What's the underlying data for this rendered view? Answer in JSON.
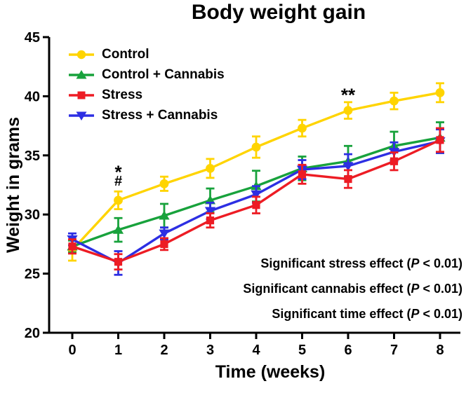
{
  "chart_data": {
    "type": "line",
    "title": "Body weight gain",
    "xlabel": "Time (weeks)",
    "ylabel": "Weight in grams",
    "x": [
      0,
      1,
      2,
      3,
      4,
      5,
      6,
      7,
      8
    ],
    "xlim": [
      -0.5,
      8.45
    ],
    "ylim": [
      20,
      45
    ],
    "yticks": [
      20,
      25,
      30,
      35,
      40,
      45
    ],
    "grid": false,
    "legend_position": "inside-top-left",
    "axis_color": "#000000",
    "series": [
      {
        "name": "Control",
        "color": "#FFD400",
        "marker": "circle",
        "values": [
          27.0,
          31.2,
          32.6,
          33.9,
          35.7,
          37.3,
          38.8,
          39.6,
          40.3
        ],
        "errors": [
          0.9,
          0.75,
          0.6,
          0.8,
          0.9,
          0.7,
          0.7,
          0.7,
          0.8
        ]
      },
      {
        "name": "Control + Cannabis",
        "color": "#18A23C",
        "marker": "triangle-up",
        "values": [
          27.3,
          28.7,
          29.9,
          31.2,
          32.4,
          33.9,
          34.5,
          35.8,
          36.5
        ],
        "errors": [
          0.5,
          1.0,
          1.0,
          1.0,
          1.3,
          1.0,
          1.3,
          1.2,
          1.3
        ]
      },
      {
        "name": "Stress",
        "color": "#ED1C24",
        "marker": "square",
        "values": [
          27.3,
          26.0,
          27.5,
          29.5,
          30.8,
          33.4,
          33.0,
          34.5,
          36.3
        ],
        "errors": [
          0.6,
          0.65,
          0.5,
          0.6,
          0.7,
          0.8,
          0.75,
          0.75,
          1.0
        ]
      },
      {
        "name": "Stress + Cannabis",
        "color": "#2D2FE3",
        "marker": "triangle-down",
        "values": [
          27.9,
          25.9,
          28.4,
          30.3,
          31.7,
          33.8,
          34.1,
          35.3,
          36.2
        ],
        "errors": [
          0.5,
          1.0,
          0.5,
          0.7,
          0.7,
          0.8,
          1.0,
          0.8,
          1.0
        ]
      }
    ],
    "annotations": [
      {
        "text": "*",
        "week": 1,
        "value": 33.9
      },
      {
        "text": "#",
        "week": 1,
        "value": 32.9
      },
      {
        "text": "**",
        "week": 6,
        "value": 40.4
      }
    ],
    "notes": [
      {
        "prefix": "Significant stress effect (",
        "p": "P",
        "suffix": " < 0.01)"
      },
      {
        "prefix": "Significant cannabis effect (",
        "p": "P",
        "suffix": " < 0.01)"
      },
      {
        "prefix": "Significant time effect (",
        "p": "P",
        "suffix": " < 0.01)"
      }
    ]
  }
}
